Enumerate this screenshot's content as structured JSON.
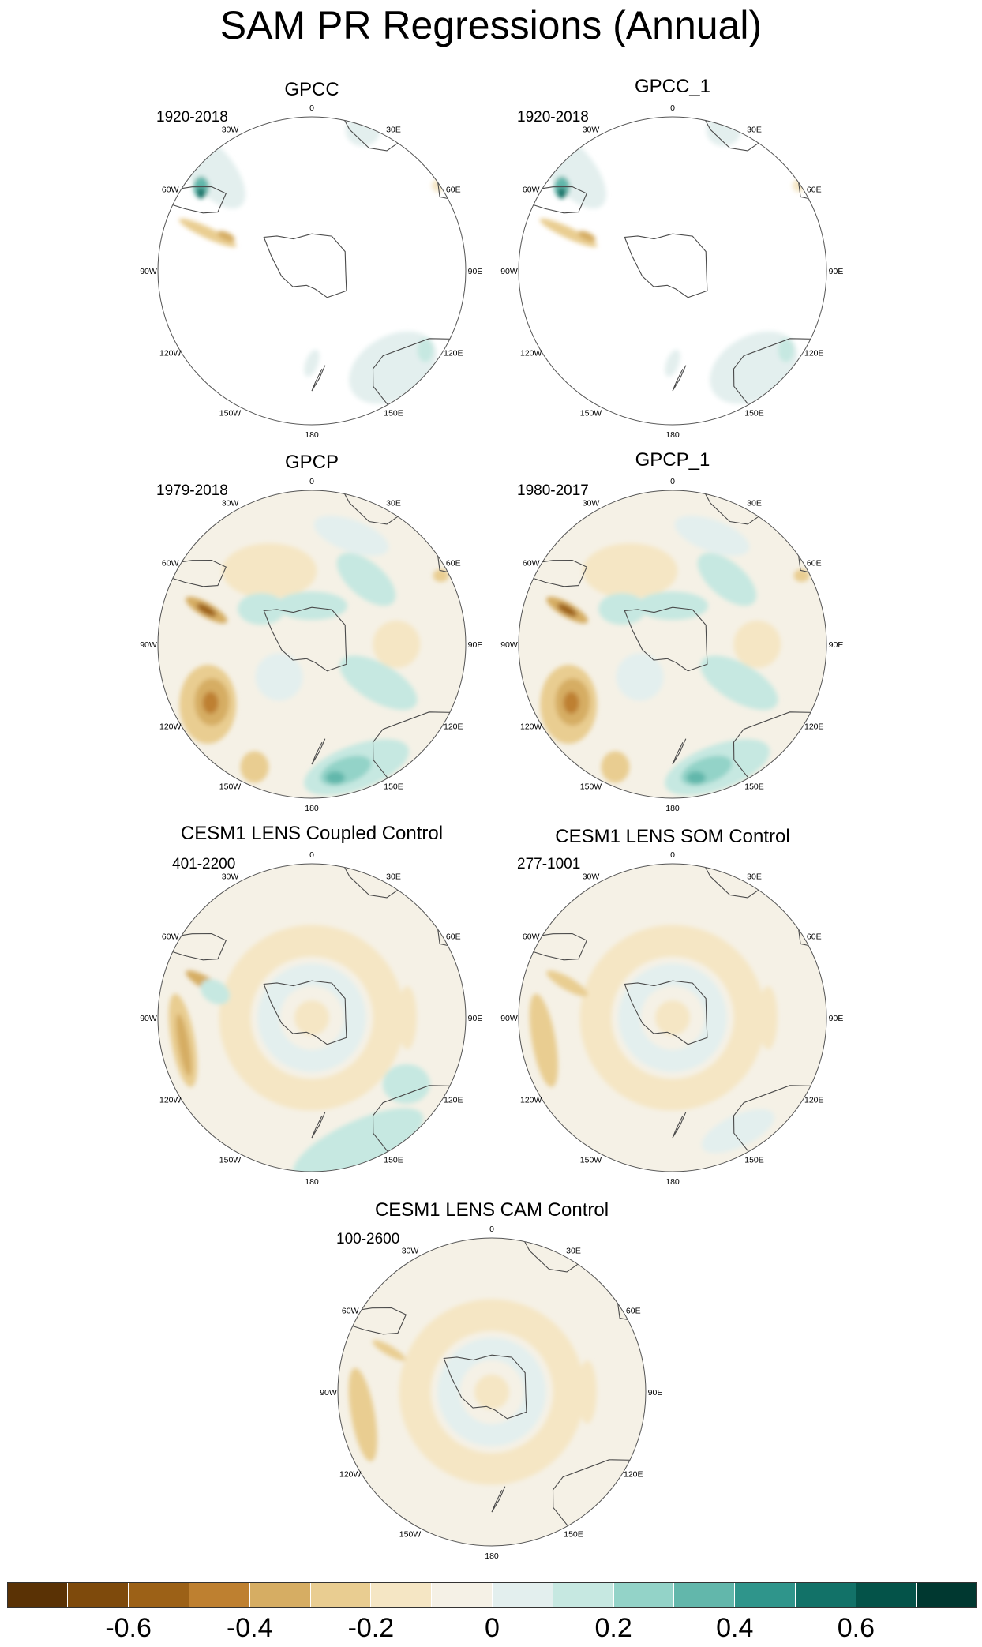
{
  "title": "SAM PR Regressions (Annual)",
  "panels": [
    {
      "title": "GPCC",
      "period": "1920-2018",
      "pattern": "gpcc"
    },
    {
      "title": "GPCC_1",
      "period": "1920-2018",
      "pattern": "gpcc"
    },
    {
      "title": "GPCP",
      "period": "1979-2018",
      "pattern": "gpcp"
    },
    {
      "title": "GPCP_1",
      "period": "1980-2017",
      "pattern": "gpcp"
    },
    {
      "title": "CESM1 LENS Coupled Control",
      "period": "401-2200",
      "pattern": "coupled"
    },
    {
      "title": "CESM1 LENS SOM Control",
      "period": "277-1001",
      "pattern": "som"
    },
    {
      "title": "CESM1 LENS CAM Control",
      "period": "100-2600",
      "pattern": "cam"
    }
  ],
  "longitude_labels": [
    "0",
    "30E",
    "60E",
    "90E",
    "120E",
    "150E",
    "180",
    "150W",
    "120W",
    "90W",
    "60W",
    "30W"
  ],
  "colorbar": {
    "colors": [
      "#5a3205",
      "#7e4a0c",
      "#9c6117",
      "#be8030",
      "#d6ad63",
      "#e9cd91",
      "#f5e6c4",
      "#f5f1e6",
      "#e3efee",
      "#c6e8e1",
      "#93d3c8",
      "#62b7ab",
      "#2f958b",
      "#127268",
      "#045349",
      "#003830"
    ],
    "labels": [
      "-0.6",
      "-0.4",
      "-0.2",
      "0",
      "0.2",
      "0.4",
      "0.6"
    ],
    "levels": [
      -0.6,
      -0.4,
      -0.2,
      0,
      0.2,
      0.4,
      0.6
    ]
  }
}
